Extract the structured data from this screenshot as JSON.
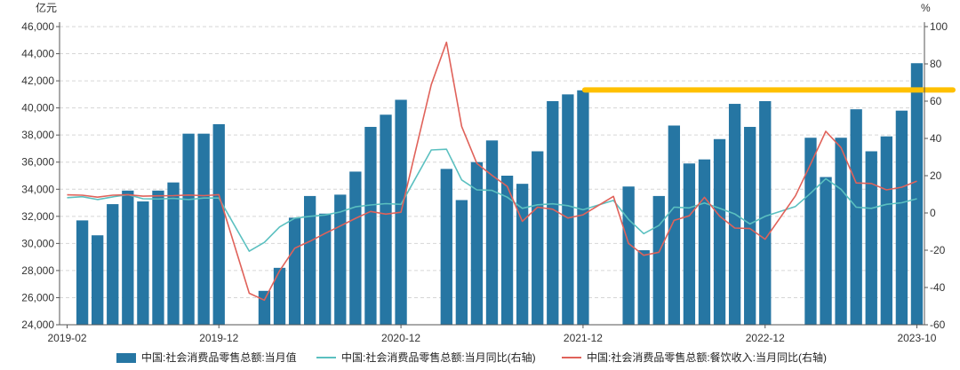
{
  "colors": {
    "bar": "#2676A3",
    "line_total": "#5BC0C0",
    "line_catering": "#E0625A",
    "highlight": "#FFC000",
    "grid": "#d6d6d6",
    "axis": "#555555"
  },
  "chart_data": {
    "type": "bar",
    "left_unit": "亿元",
    "right_unit": "%",
    "left_axis": {
      "min": 24000,
      "max": 46000,
      "ticks": [
        24000,
        26000,
        28000,
        30000,
        32000,
        34000,
        36000,
        38000,
        40000,
        42000,
        44000,
        46000
      ],
      "tick_labels": [
        "24,000",
        "26,000",
        "28,000",
        "30,000",
        "32,000",
        "34,000",
        "36,000",
        "38,000",
        "40,000",
        "42,000",
        "44,000",
        "46,000"
      ]
    },
    "right_axis": {
      "min": -60,
      "max": 100,
      "ticks": [
        -60,
        -40,
        -20,
        0,
        20,
        40,
        60,
        80,
        100
      ],
      "tick_labels": [
        "-60",
        "-40",
        "-20",
        "0",
        "20",
        "40",
        "60",
        "80",
        "100"
      ]
    },
    "x_ticks": [
      {
        "month": "2019-02",
        "label": "2019-02"
      },
      {
        "month": "2019-12",
        "label": "2019-12"
      },
      {
        "month": "2020-12",
        "label": "2020-12"
      },
      {
        "month": "2021-12",
        "label": "2021-12"
      },
      {
        "month": "2022-12",
        "label": "2022-12"
      },
      {
        "month": "2023-10",
        "label": "2023-10"
      }
    ],
    "months": [
      "2019-02",
      "2019-03",
      "2019-04",
      "2019-05",
      "2019-06",
      "2019-07",
      "2019-08",
      "2019-09",
      "2019-10",
      "2019-11",
      "2019-12",
      "2020-01",
      "2020-02",
      "2020-03",
      "2020-04",
      "2020-05",
      "2020-06",
      "2020-07",
      "2020-08",
      "2020-09",
      "2020-10",
      "2020-11",
      "2020-12",
      "2021-01",
      "2021-02",
      "2021-03",
      "2021-04",
      "2021-05",
      "2021-06",
      "2021-07",
      "2021-08",
      "2021-09",
      "2021-10",
      "2021-11",
      "2021-12",
      "2022-01",
      "2022-02",
      "2022-03",
      "2022-04",
      "2022-05",
      "2022-06",
      "2022-07",
      "2022-08",
      "2022-09",
      "2022-10",
      "2022-11",
      "2022-12",
      "2023-01",
      "2023-02",
      "2023-03",
      "2023-04",
      "2023-05",
      "2023-06",
      "2023-07",
      "2023-08",
      "2023-09",
      "2023-10"
    ],
    "series": [
      {
        "name": "中国:社会消费品零售总额:当月值",
        "type": "bar",
        "axis": "left",
        "values": [
          null,
          31700,
          30600,
          32900,
          33900,
          33100,
          33900,
          34500,
          38100,
          38100,
          38800,
          null,
          null,
          26500,
          28200,
          31900,
          33500,
          32200,
          33600,
          35300,
          38600,
          39500,
          40600,
          null,
          null,
          35500,
          33200,
          36000,
          37600,
          35000,
          34400,
          36800,
          40500,
          41000,
          41300,
          null,
          null,
          34200,
          29500,
          33500,
          38700,
          35900,
          36200,
          37700,
          40300,
          38600,
          40500,
          null,
          null,
          37800,
          34900,
          37800,
          39900,
          36800,
          37900,
          39800,
          43300
        ]
      },
      {
        "name": "中国:社会消费品零售总额:当月同比(右轴)",
        "type": "line",
        "axis": "right",
        "values": [
          8.2,
          8.7,
          7.2,
          8.6,
          9.8,
          7.6,
          7.5,
          7.8,
          7.2,
          8.0,
          8.0,
          null,
          -20.5,
          -15.8,
          -7.5,
          -2.8,
          -1.8,
          -1.1,
          0.5,
          3.3,
          4.3,
          5.0,
          4.6,
          null,
          33.8,
          34.2,
          17.7,
          12.4,
          12.1,
          8.5,
          2.5,
          4.4,
          4.9,
          3.9,
          1.7,
          null,
          6.7,
          -3.5,
          -11.1,
          -6.7,
          3.1,
          2.7,
          5.4,
          2.5,
          -0.5,
          -5.9,
          -1.8,
          null,
          3.5,
          10.6,
          18.4,
          12.7,
          3.1,
          2.5,
          4.6,
          5.5,
          7.6
        ]
      },
      {
        "name": "中国:社会消费品零售总额:餐饮收入:当月同比(右轴)",
        "type": "line",
        "axis": "right",
        "values": [
          9.7,
          9.5,
          8.5,
          9.5,
          9.8,
          9.0,
          9.2,
          9.3,
          9.6,
          9.3,
          9.8,
          null,
          -43.1,
          -46.8,
          -31.1,
          -18.9,
          -15.2,
          -11.0,
          -7.0,
          -2.9,
          0.8,
          -0.6,
          0.4,
          null,
          68.9,
          91.6,
          46.4,
          26.6,
          20.2,
          14.3,
          -4.5,
          3.1,
          2.0,
          -2.7,
          -1.0,
          null,
          8.9,
          -16.4,
          -22.7,
          -21.1,
          -4.0,
          -1.5,
          8.4,
          -1.7,
          -8.1,
          -8.4,
          -14.1,
          null,
          9.2,
          26.3,
          43.8,
          35.1,
          16.1,
          15.8,
          12.4,
          13.8,
          17.1
        ]
      }
    ],
    "legend": [
      {
        "label": "中国:社会消费品零售总额:当月值",
        "kind": "bar"
      },
      {
        "label": "中国:社会消费品零售总额:当月同比(右轴)",
        "kind": "line_total"
      },
      {
        "label": "中国:社会消费品零售总额:餐饮收入:当月同比(右轴)",
        "kind": "line_catering"
      }
    ],
    "legend_position": "bottom",
    "grid": "horizontal dashed",
    "annotation": {
      "kind": "horizontal highlight line",
      "value_right_axis": 66,
      "from_month": "2021-12",
      "color": "#FFC000"
    }
  }
}
